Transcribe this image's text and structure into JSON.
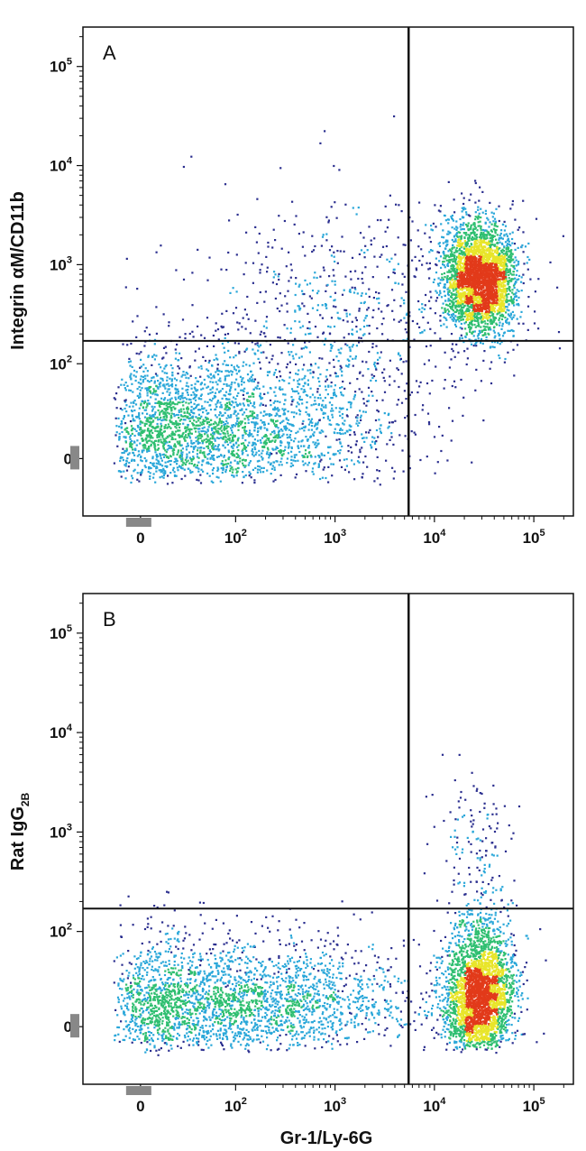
{
  "chart_data": [
    {
      "type": "scatter",
      "panel_label": "A",
      "xlabel": "",
      "ylabel": "Integrin αM/CD11b",
      "x_scale": "biexponential",
      "y_scale": "biexponential",
      "xlim": [
        -40,
        250000
      ],
      "ylim": [
        -40,
        250000
      ],
      "x_ticks": [
        {
          "base": "0",
          "exp": ""
        },
        {
          "base": "10",
          "exp": "2"
        },
        {
          "base": "10",
          "exp": "3"
        },
        {
          "base": "10",
          "exp": "4"
        },
        {
          "base": "10",
          "exp": "5"
        }
      ],
      "y_ticks": [
        {
          "base": "0",
          "exp": ""
        },
        {
          "base": "10",
          "exp": "2"
        },
        {
          "base": "10",
          "exp": "3"
        },
        {
          "base": "10",
          "exp": "4"
        },
        {
          "base": "10",
          "exp": "5"
        }
      ],
      "gate": {
        "x": 5500,
        "y": 170
      },
      "populations": [
        {
          "name": "Gr-1 negative",
          "x_center": 60,
          "y_center": 20,
          "x_spread_log10": 0.9,
          "y_spread_log10": 0.45,
          "n": 2600
        },
        {
          "name": "Gr-1+ CD11b+",
          "x_center": 28000,
          "y_center": 750,
          "x_spread_log10": 0.18,
          "y_spread_log10": 0.28,
          "n": 3200
        },
        {
          "name": "scatter",
          "x_center": 1500,
          "y_center": 300,
          "x_spread_log10": 0.8,
          "y_spread_log10": 0.6,
          "n": 700
        }
      ],
      "grid": false,
      "legend": "none"
    },
    {
      "type": "scatter",
      "panel_label": "B",
      "xlabel": "Gr-1/Ly-6G",
      "ylabel": "Rat IgG",
      "ylabel_subscript": "2B",
      "x_scale": "biexponential",
      "y_scale": "biexponential",
      "xlim": [
        -40,
        250000
      ],
      "ylim": [
        -40,
        250000
      ],
      "x_ticks": [
        {
          "base": "0",
          "exp": ""
        },
        {
          "base": "10",
          "exp": "2"
        },
        {
          "base": "10",
          "exp": "3"
        },
        {
          "base": "10",
          "exp": "4"
        },
        {
          "base": "10",
          "exp": "5"
        }
      ],
      "y_ticks": [
        {
          "base": "0",
          "exp": ""
        },
        {
          "base": "10",
          "exp": "2"
        },
        {
          "base": "10",
          "exp": "3"
        },
        {
          "base": "10",
          "exp": "4"
        },
        {
          "base": "10",
          "exp": "5"
        }
      ],
      "gate": {
        "x": 5500,
        "y": 170
      },
      "populations": [
        {
          "name": "Gr-1 negative",
          "x_center": 80,
          "y_center": 15,
          "x_spread_log10": 0.95,
          "y_spread_log10": 0.4,
          "n": 2600
        },
        {
          "name": "Gr-1+ isotype",
          "x_center": 28000,
          "y_center": 20,
          "x_spread_log10": 0.17,
          "y_spread_log10": 0.42,
          "n": 3000
        },
        {
          "name": "scatter",
          "x_center": 25000,
          "y_center": 900,
          "x_spread_log10": 0.2,
          "y_spread_log10": 0.35,
          "n": 120
        }
      ],
      "grid": false,
      "legend": "none"
    }
  ],
  "colors": {
    "density_low": "#2b2f8f",
    "density_mid_low": "#2aa7d9",
    "density_mid": "#2fbf71",
    "density_mid_high": "#e8e52a",
    "density_high": "#e23a1a",
    "axis": "#111111",
    "gate_line": "#111111",
    "zero_marker": "#888888"
  }
}
